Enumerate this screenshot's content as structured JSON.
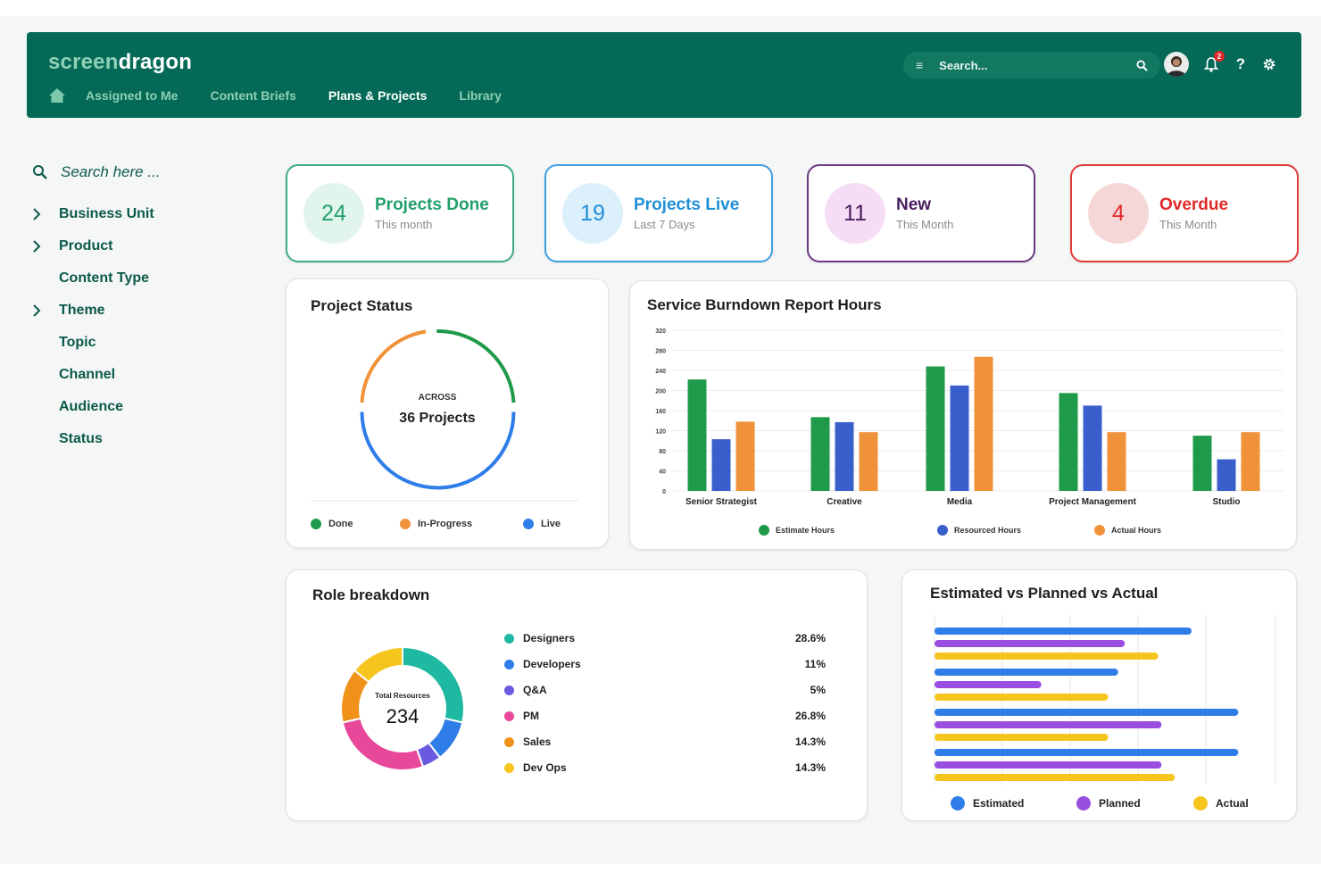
{
  "app": {
    "logo_part1": "screen",
    "logo_part2": "dragon"
  },
  "nav": {
    "items": [
      {
        "label": "Assigned to Me",
        "active": false
      },
      {
        "label": "Content Briefs",
        "active": false
      },
      {
        "label": "Plans & Projects",
        "active": true
      },
      {
        "label": "Library",
        "active": false
      }
    ]
  },
  "search": {
    "placeholder": "Search..."
  },
  "notifications": {
    "count": "2"
  },
  "help_label": "?",
  "sidebar": {
    "search_placeholder": "Search here ...",
    "items": [
      {
        "label": "Business Unit",
        "expandable": true
      },
      {
        "label": "Product",
        "expandable": true
      },
      {
        "label": "Content Type",
        "expandable": false
      },
      {
        "label": "Theme",
        "expandable": true
      },
      {
        "label": "Topic",
        "expandable": false
      },
      {
        "label": "Channel",
        "expandable": false
      },
      {
        "label": "Audience",
        "expandable": false
      },
      {
        "label": "Status",
        "expandable": false
      }
    ]
  },
  "stats": [
    {
      "value": "24",
      "title": "Projects Done",
      "subtitle": "This month",
      "color": "#22a06b",
      "border": "#3eaa84",
      "bg": "#e2f5ed"
    },
    {
      "value": "19",
      "title": "Projects Live",
      "subtitle": "Last 7 Days",
      "color": "#1f8fd6",
      "border": "#3ca0e0",
      "bg": "#dcf0fb"
    },
    {
      "value": "11",
      "title": "New",
      "subtitle": "This Month",
      "color": "#4a1e5e",
      "border": "#6b3a82",
      "bg": "#f6ddf6"
    },
    {
      "value": "4",
      "title": "Overdue",
      "subtitle": "This Month",
      "color": "#e02a2a",
      "border": "#e23a3a",
      "bg": "#f6d7d7"
    }
  ],
  "project_status": {
    "title": "Project Status",
    "center_small": "ACROSS",
    "center_big": "36 Projects",
    "legend": [
      {
        "label": "Done",
        "color": "#1e9a4a"
      },
      {
        "label": "In-Progress",
        "color": "#f0923a"
      },
      {
        "label": "Live",
        "color": "#2f7de8"
      }
    ]
  },
  "role_breakdown": {
    "title": "Role breakdown",
    "center_small": "Total Resources",
    "center_big": "234",
    "rows": [
      {
        "label": "Designers",
        "pct": "28.6%",
        "color": "#1fb8a0"
      },
      {
        "label": "Developers",
        "pct": "11%",
        "color": "#2f7de8"
      },
      {
        "label": "Q&A",
        "pct": "5%",
        "color": "#6a5ae0"
      },
      {
        "label": "PM",
        "pct": "26.8%",
        "color": "#e8489a"
      },
      {
        "label": "Sales",
        "pct": "14.3%",
        "color": "#f0921a"
      },
      {
        "label": "Dev Ops",
        "pct": "14.3%",
        "color": "#f5c51e"
      }
    ]
  },
  "chart_data": [
    {
      "type": "bar",
      "title": "Service Burndown Report Hours",
      "categories": [
        "Senior Strategist",
        "Creative",
        "Media",
        "Project Management",
        "Studio"
      ],
      "series": [
        {
          "name": "Estimate Hours",
          "color": "#1e9a4a",
          "values": [
            222,
            147,
            248,
            195,
            110
          ]
        },
        {
          "name": "Resourced Hours",
          "color": "#3a5fcc",
          "values": [
            103,
            137,
            210,
            170,
            63
          ]
        },
        {
          "name": "Actual Hours",
          "color": "#f0923a",
          "values": [
            138,
            117,
            267,
            117,
            117
          ]
        }
      ],
      "ylim": [
        0,
        320
      ],
      "yticks": [
        0,
        40,
        80,
        120,
        160,
        200,
        240,
        280,
        320
      ],
      "grid": true,
      "legend": "bottom"
    },
    {
      "type": "bar",
      "orientation": "horizontal",
      "title": "Estimated vs Planned vs Actual",
      "series": [
        {
          "name": "Estimated",
          "color": "#2f7de8",
          "values": [
            0.77,
            0.55,
            0.91,
            0.91
          ]
        },
        {
          "name": "Planned",
          "color": "#9a4ee0",
          "values": [
            0.57,
            0.32,
            0.68,
            0.68
          ]
        },
        {
          "name": "Actual",
          "color": "#f5c51e",
          "values": [
            0.67,
            0.52,
            0.52,
            0.72
          ]
        }
      ],
      "grid": true,
      "legend": "bottom"
    }
  ]
}
